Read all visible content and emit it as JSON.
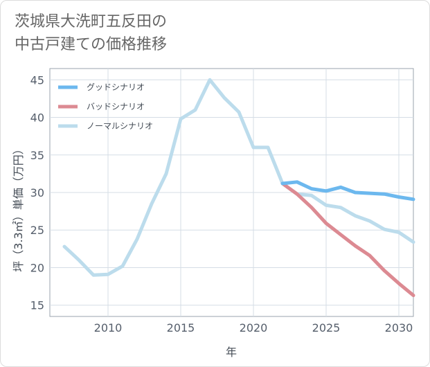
{
  "chart_data": {
    "type": "line",
    "title_lines": [
      "茨城県大洗町五反田の",
      "中古戸建ての価格推移"
    ],
    "xlabel": "年",
    "ylabel": "坪（3.3㎡）単価（万円）",
    "xlim": [
      2006,
      2031
    ],
    "ylim": [
      13.5,
      46.5
    ],
    "x_ticks": [
      2010,
      2015,
      2020,
      2025,
      2030
    ],
    "y_ticks": [
      15,
      20,
      25,
      30,
      35,
      40,
      45
    ],
    "grid": true,
    "legend_position": "top-left",
    "series": [
      {
        "name": "グッドシナリオ",
        "color": "#6cb8ee",
        "x": [
          2022,
          2023,
          2024,
          2025,
          2026,
          2027,
          2028,
          2029,
          2030,
          2031
        ],
        "values": [
          31.2,
          31.4,
          30.5,
          30.2,
          30.7,
          30.0,
          29.9,
          29.8,
          29.4,
          29.1
        ]
      },
      {
        "name": "バッドシナリオ",
        "color": "#dc8a92",
        "x": [
          2022,
          2023,
          2024,
          2025,
          2026,
          2027,
          2028,
          2029,
          2030,
          2031
        ],
        "values": [
          31.2,
          29.8,
          28.0,
          25.9,
          24.4,
          22.9,
          21.6,
          19.6,
          17.9,
          16.3
        ]
      },
      {
        "name": "ノーマルシナリオ",
        "color": "#bcdcec",
        "x": [
          2007,
          2008,
          2009,
          2010,
          2011,
          2012,
          2013,
          2014,
          2015,
          2016,
          2017,
          2018,
          2019,
          2020,
          2021,
          2022,
          2023,
          2024,
          2025,
          2026,
          2027,
          2028,
          2029,
          2030,
          2031
        ],
        "values": [
          22.8,
          21.0,
          19.0,
          19.1,
          20.2,
          23.8,
          28.5,
          32.5,
          39.8,
          41.0,
          45.0,
          42.6,
          40.7,
          36.0,
          36.0,
          31.2,
          29.8,
          29.6,
          28.3,
          28.0,
          26.9,
          26.2,
          25.1,
          24.7,
          23.4
        ]
      }
    ]
  }
}
